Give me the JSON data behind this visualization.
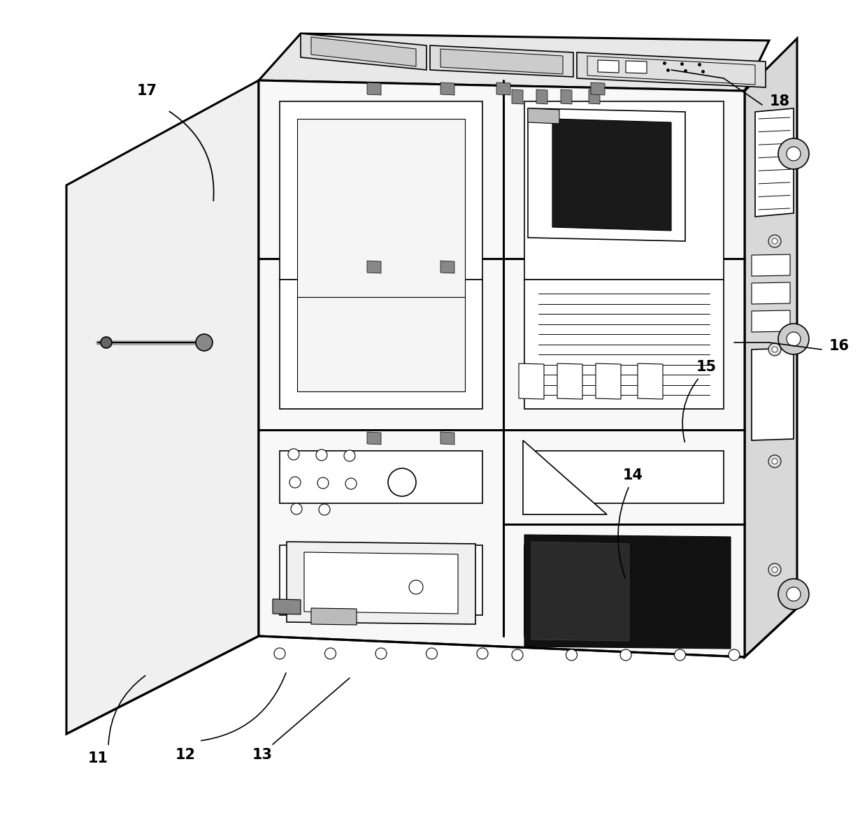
{
  "bg_color": "#ffffff",
  "line_color": "#000000",
  "lw": 1.2,
  "tlw": 2.2,
  "fig_width": 12.4,
  "fig_height": 11.76
}
